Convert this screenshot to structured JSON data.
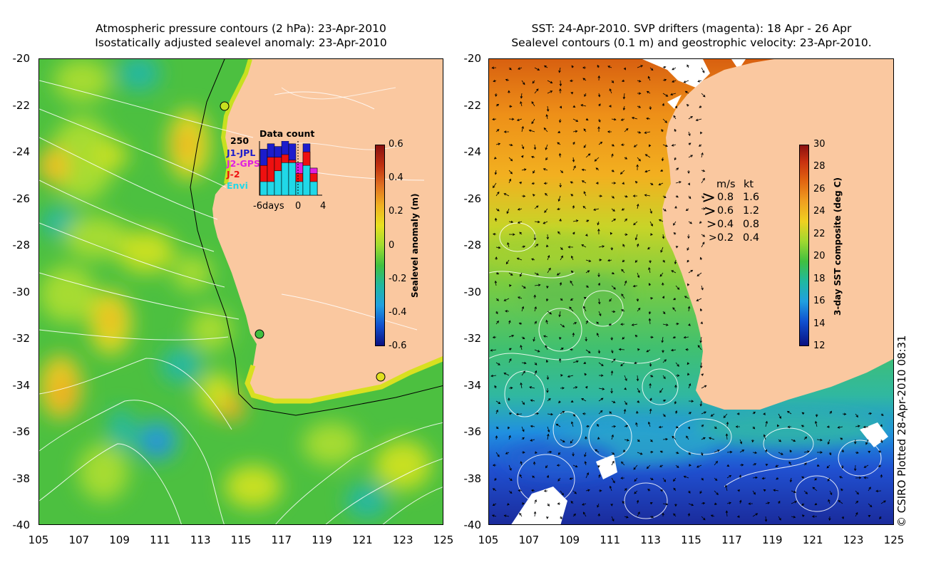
{
  "left_panel": {
    "title_line1": "Atmospheric pressure contours (2 hPa): 23-Apr-2010",
    "title_line2": "Isostatically adjusted sealevel anomaly: 23-Apr-2010",
    "y_ticks": [
      "-20",
      "-22",
      "-24",
      "-26",
      "-28",
      "-30",
      "-32",
      "-34",
      "-36",
      "-38",
      "-40"
    ],
    "x_ticks": [
      "105",
      "107",
      "109",
      "111",
      "113",
      "115",
      "117",
      "119",
      "121",
      "123",
      "125"
    ],
    "colorbar": {
      "label": "Sealevel anomaly (m)",
      "ticks": [
        "0.6",
        "0.4",
        "0.2",
        "0",
        "-0.2",
        "-0.4",
        "-0.6"
      ],
      "range": [
        -0.6,
        0.6
      ]
    },
    "data_count": {
      "title": "Data count",
      "max_label": "250",
      "x_labels": [
        "-6days",
        "0",
        "4"
      ],
      "missions": [
        {
          "name": "J1-JPL",
          "color": "#1c1ccc"
        },
        {
          "name": "J2-GPS",
          "color": "#e020e0"
        },
        {
          "name": "J-2",
          "color": "#ee1010"
        },
        {
          "name": "Envi",
          "color": "#20d8e8"
        }
      ],
      "bars": [
        {
          "envi": 0.25,
          "j2": 0.55,
          "j2gps": 0,
          "j1": 0.85
        },
        {
          "envi": 0.25,
          "j2": 0.7,
          "j2gps": 0,
          "j1": 0.95
        },
        {
          "envi": 0.45,
          "j2": 0.7,
          "j2gps": 0,
          "j1": 0.9
        },
        {
          "envi": 0.6,
          "j2": 0.75,
          "j2gps": 0,
          "j1": 1.0
        },
        {
          "envi": 0.6,
          "j2": 0.65,
          "j2gps": 0,
          "j1": 0.95
        },
        {
          "envi": 0.25,
          "j2": 0.4,
          "j2gps": 0.6,
          "j1": 0.6
        },
        {
          "envi": 0.55,
          "j2": 0.8,
          "j2gps": 0,
          "j1": 0.95
        },
        {
          "envi": 0.25,
          "j2": 0.4,
          "j2gps": 0.5,
          "j1": 0.5
        }
      ]
    }
  },
  "right_panel": {
    "title_line1": "SST: 24-Apr-2010. SVP drifters (magenta): 18 Apr - 26 Apr",
    "title_line2": "Sealevel contours (0.1 m) and geostrophic velocity: 23-Apr-2010.",
    "y_ticks": [
      "-20",
      "-22",
      "-24",
      "-26",
      "-28",
      "-30",
      "-32",
      "-34",
      "-36",
      "-38",
      "-40"
    ],
    "x_ticks": [
      "105",
      "107",
      "109",
      "111",
      "113",
      "115",
      "117",
      "119",
      "121",
      "123",
      "125"
    ],
    "colorbar": {
      "label": "3-day SST composite (deg C)",
      "ticks": [
        "30",
        "28",
        "26",
        "24",
        "22",
        "20",
        "18",
        "16",
        "14",
        "12"
      ],
      "range": [
        12,
        30
      ]
    },
    "velocity_legend": {
      "header_ms": "m/s",
      "header_kt": "kt",
      "rows": [
        {
          "ms": "0.8",
          "kt": "1.6"
        },
        {
          "ms": "0.6",
          "kt": "1.2"
        },
        {
          "ms": "0.4",
          "kt": "0.8"
        },
        {
          "ms": "0.2",
          "kt": "0.4"
        }
      ]
    }
  },
  "credit": "© CSIRO Plotted 28-Apr-2010 08:31",
  "colors": {
    "land": "#fac8a0",
    "sea_green": "#5ec83c",
    "cloud_white": "#ffffff"
  }
}
